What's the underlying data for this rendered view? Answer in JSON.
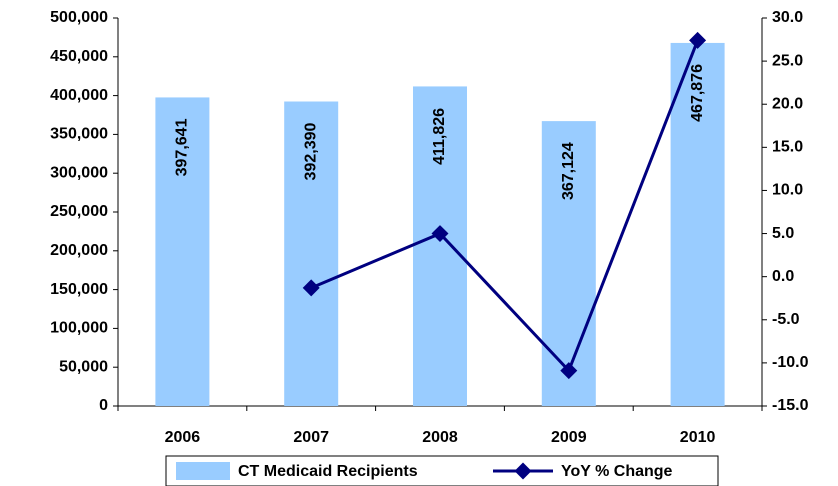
{
  "chart_data": {
    "type": "bar_line",
    "categories": [
      "2006",
      "2007",
      "2008",
      "2009",
      "2010"
    ],
    "series": [
      {
        "name": "CT Medicaid Recipients",
        "color": "#99ccff",
        "type": "bar",
        "values": [
          397641,
          392390,
          411826,
          367124,
          467876
        ],
        "value_labels": [
          "397,641",
          "392,390",
          "411,826",
          "367,124",
          "467,876"
        ]
      },
      {
        "name": "YoY % Change",
        "color": "#000080",
        "type": "line",
        "axis": "y2",
        "values": [
          null,
          -1.3,
          5.0,
          -10.9,
          27.4
        ]
      }
    ],
    "ylim": [
      0,
      500000
    ],
    "yticks": [
      0,
      {
        "value": 50000,
        "label": "50,000"
      },
      {
        "value": 100000,
        "label": "100,000"
      },
      {
        "value": 150000,
        "label": "150,000"
      },
      {
        "value": 200000,
        "label": "200,000"
      },
      {
        "value": 250000,
        "label": "250,000"
      },
      {
        "value": 300000,
        "label": "300,000"
      },
      {
        "value": 350000,
        "label": "350,000"
      },
      {
        "value": 400000,
        "label": "400,000"
      },
      {
        "value": 450000,
        "label": "450,000"
      },
      {
        "value": 500000,
        "label": "500,000"
      }
    ],
    "y2lim": [
      -15,
      30
    ],
    "y2ticks": [
      {
        "value": -15,
        "label": "-15.0"
      },
      {
        "value": -10,
        "label": "-10.0"
      },
      {
        "value": -5,
        "label": "-5.0"
      },
      {
        "value": 0,
        "label": "0.0"
      },
      {
        "value": 5,
        "label": "5.0"
      },
      {
        "value": 10,
        "label": "10.0"
      },
      {
        "value": 15,
        "label": "15.0"
      },
      {
        "value": 20,
        "label": "20.0"
      },
      {
        "value": 25,
        "label": "25.0"
      },
      {
        "value": 30,
        "label": "30.0"
      }
    ],
    "legend": "bottom"
  }
}
